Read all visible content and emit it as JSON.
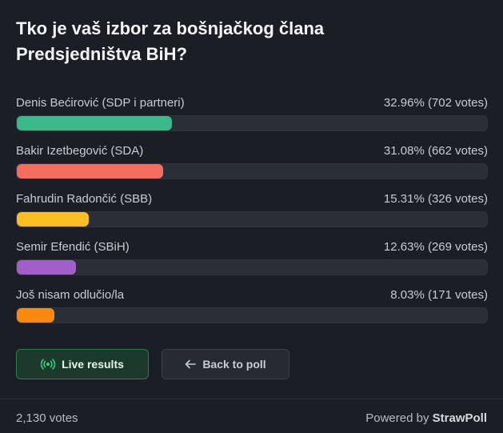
{
  "poll": {
    "title_line1": "Tko je vaš izbor za bošnjačkog člana",
    "title_line2": "Predsjedništva BiH?"
  },
  "options": [
    {
      "label": "Denis Bećirović (SDP i partneri)",
      "stats": "32.96% (702 votes)",
      "percent": 32.96,
      "color": "#3bb98b"
    },
    {
      "label": "Bakir Izetbegović (SDA)",
      "stats": "31.08% (662 votes)",
      "percent": 31.08,
      "color": "#f46d5e"
    },
    {
      "label": "Fahrudin Radončić (SBB)",
      "stats": "15.31% (326 votes)",
      "percent": 15.31,
      "color": "#fbbf24"
    },
    {
      "label": "Semir Efendić (SBiH)",
      "stats": "12.63% (269 votes)",
      "percent": 12.63,
      "color": "#a25fc9"
    },
    {
      "label": "Još nisam odlučio/la",
      "stats": "8.03% (171 votes)",
      "percent": 8.03,
      "color": "#f98a0e"
    }
  ],
  "buttons": {
    "live_label": "Live results",
    "live_icon": "broadcast-icon",
    "back_label": "Back to poll",
    "back_icon": "arrow-left-icon"
  },
  "footer": {
    "total_votes": "2,130 votes",
    "powered_prefix": "Powered by",
    "brand": "StrawPoll"
  }
}
